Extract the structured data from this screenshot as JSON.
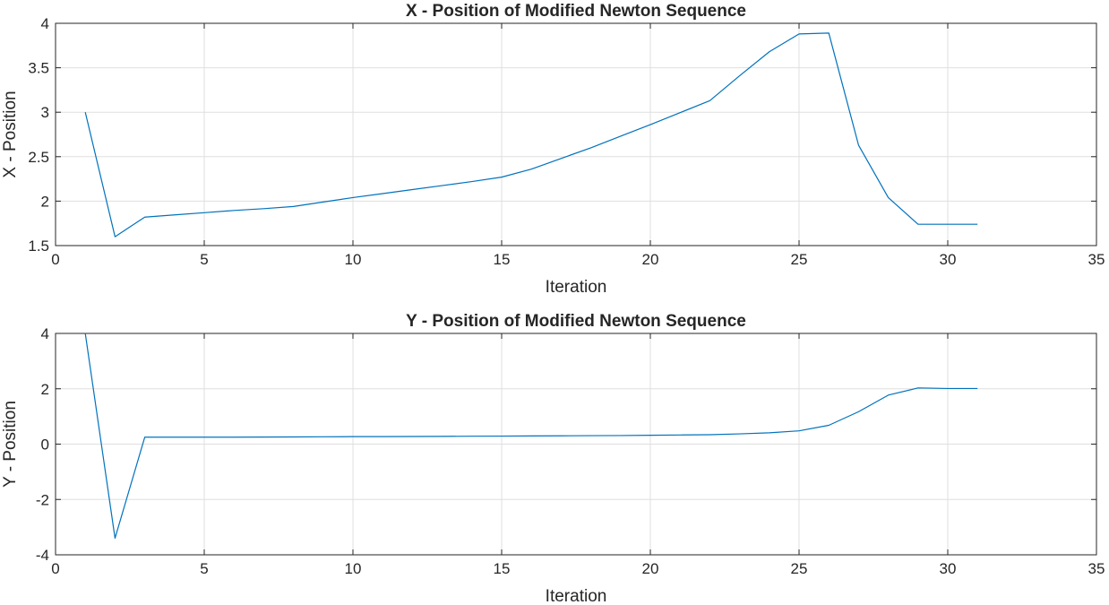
{
  "chart_data": [
    {
      "type": "line",
      "title": "X - Position of Modified Newton Sequence",
      "xlabel": "Iteration",
      "ylabel": "X - Position",
      "xlim": [
        0,
        35
      ],
      "ylim": [
        1.5,
        4
      ],
      "xticks": [
        0,
        5,
        10,
        15,
        20,
        25,
        30,
        35
      ],
      "yticks": [
        1.5,
        2,
        2.5,
        3,
        3.5,
        4
      ],
      "xtick_labels": [
        "0",
        "5",
        "10",
        "15",
        "20",
        "25",
        "30",
        "35"
      ],
      "ytick_labels": [
        "1.5",
        "2",
        "2.5",
        "3",
        "3.5",
        "4"
      ],
      "grid": true,
      "color": "#0072BD",
      "series": [
        {
          "x": [
            1,
            2,
            3,
            4,
            5,
            6,
            7,
            8,
            9,
            10,
            11,
            12,
            13,
            14,
            15,
            16,
            17,
            18,
            19,
            20,
            21,
            22,
            23,
            24,
            25,
            26,
            27,
            28,
            29,
            30,
            31
          ],
          "y": [
            3.0,
            1.6,
            1.82,
            1.845,
            1.87,
            1.895,
            1.915,
            1.94,
            1.99,
            2.04,
            2.085,
            2.13,
            2.175,
            2.22,
            2.27,
            2.36,
            2.48,
            2.6,
            2.73,
            2.86,
            2.995,
            3.13,
            3.41,
            3.68,
            3.88,
            3.89,
            2.63,
            2.04,
            1.74,
            1.74,
            1.74
          ]
        }
      ]
    },
    {
      "type": "line",
      "title": "Y - Position of Modified Newton Sequence",
      "xlabel": "Iteration",
      "ylabel": "Y - Position",
      "xlim": [
        0,
        35
      ],
      "ylim": [
        -4,
        4
      ],
      "xticks": [
        0,
        5,
        10,
        15,
        20,
        25,
        30,
        35
      ],
      "yticks": [
        -4,
        -2,
        0,
        2,
        4
      ],
      "xtick_labels": [
        "0",
        "5",
        "10",
        "15",
        "20",
        "25",
        "30",
        "35"
      ],
      "ytick_labels": [
        "-4",
        "-2",
        "0",
        "2",
        "4"
      ],
      "grid": true,
      "color": "#0072BD",
      "series": [
        {
          "x": [
            1,
            2,
            3,
            4,
            5,
            6,
            7,
            8,
            9,
            10,
            11,
            12,
            13,
            14,
            15,
            16,
            17,
            18,
            19,
            20,
            21,
            22,
            23,
            24,
            25,
            26,
            27,
            28,
            29,
            30,
            31
          ],
          "y": [
            4.0,
            -3.4,
            0.25,
            0.25,
            0.25,
            0.25,
            0.255,
            0.26,
            0.265,
            0.27,
            0.27,
            0.275,
            0.28,
            0.285,
            0.29,
            0.295,
            0.3,
            0.305,
            0.31,
            0.32,
            0.33,
            0.34,
            0.37,
            0.41,
            0.48,
            0.68,
            1.17,
            1.77,
            2.03,
            2.01,
            2.01
          ]
        }
      ]
    }
  ]
}
